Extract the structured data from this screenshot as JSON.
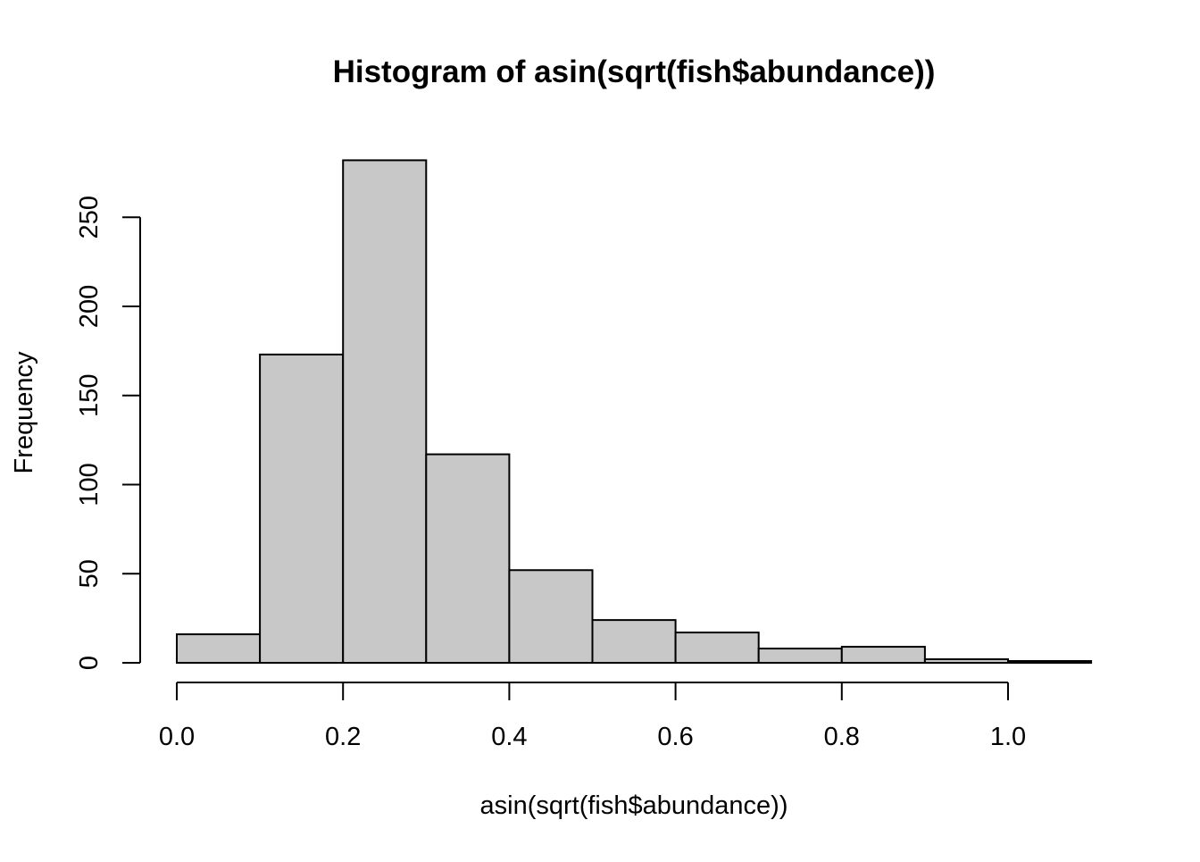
{
  "chart_data": {
    "type": "bar",
    "title": "Histogram of asin(sqrt(fish$abundance))",
    "xlabel": "asin(sqrt(fish$abundance))",
    "ylabel": "Frequency",
    "bins": [
      {
        "x0": 0.0,
        "x1": 0.1,
        "count": 16
      },
      {
        "x0": 0.1,
        "x1": 0.2,
        "count": 173
      },
      {
        "x0": 0.2,
        "x1": 0.3,
        "count": 282
      },
      {
        "x0": 0.3,
        "x1": 0.4,
        "count": 117
      },
      {
        "x0": 0.4,
        "x1": 0.5,
        "count": 52
      },
      {
        "x0": 0.5,
        "x1": 0.6,
        "count": 24
      },
      {
        "x0": 0.6,
        "x1": 0.7,
        "count": 17
      },
      {
        "x0": 0.7,
        "x1": 0.8,
        "count": 8
      },
      {
        "x0": 0.8,
        "x1": 0.9,
        "count": 9
      },
      {
        "x0": 0.9,
        "x1": 1.0,
        "count": 2
      },
      {
        "x0": 1.0,
        "x1": 1.1,
        "count": 1
      }
    ],
    "xticks": [
      {
        "value": 0.0,
        "label": "0.0"
      },
      {
        "value": 0.2,
        "label": "0.2"
      },
      {
        "value": 0.4,
        "label": "0.4"
      },
      {
        "value": 0.6,
        "label": "0.6"
      },
      {
        "value": 0.8,
        "label": "0.8"
      },
      {
        "value": 1.0,
        "label": "1.0"
      }
    ],
    "yticks": [
      {
        "value": 0,
        "label": "0"
      },
      {
        "value": 50,
        "label": "50"
      },
      {
        "value": 100,
        "label": "100"
      },
      {
        "value": 150,
        "label": "150"
      },
      {
        "value": 200,
        "label": "200"
      },
      {
        "value": 250,
        "label": "250"
      }
    ],
    "xlim": [
      0.0,
      1.1
    ],
    "ylim": [
      0,
      282
    ],
    "grid": false,
    "bar_fill": "#c8c8c8",
    "bar_stroke": "#000000"
  }
}
